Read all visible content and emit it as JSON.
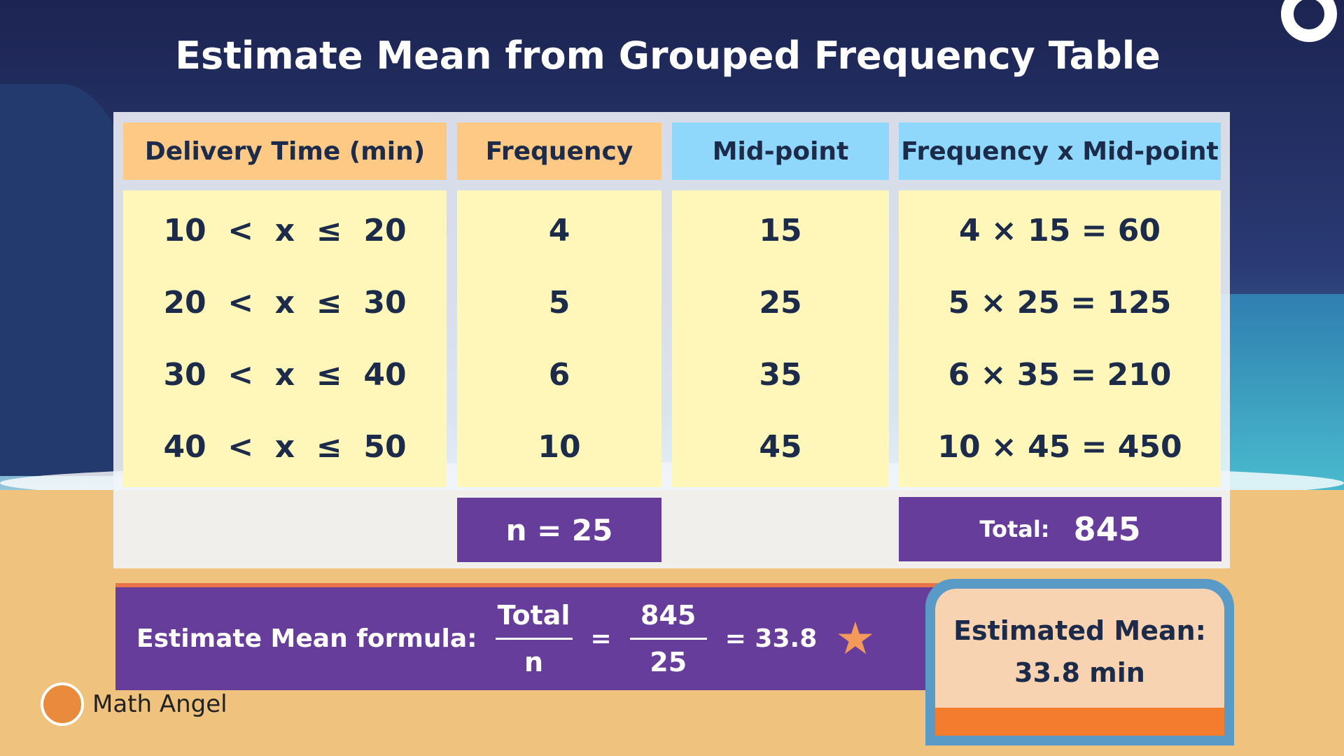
{
  "title": "Estimate Mean from Grouped Frequency Table",
  "table": {
    "headers": [
      "Delivery Time (min)",
      "Frequency",
      "Mid-point",
      "Frequency x Mid-point"
    ],
    "rows": [
      {
        "interval": "10  <  x  ≤  20",
        "frequency": "4",
        "midpoint": "15",
        "product": "4 × 15 = 60"
      },
      {
        "interval": "20  <  x  ≤  30",
        "frequency": "5",
        "midpoint": "25",
        "product": "5 × 25 = 125"
      },
      {
        "interval": "30  <  x  ≤  40",
        "frequency": "6",
        "midpoint": "35",
        "product": "6 × 35 = 210"
      },
      {
        "interval": "40  <  x  ≤  50",
        "frequency": "10",
        "midpoint": "45",
        "product": "10 × 45 = 450"
      }
    ],
    "n_total": "n = 25",
    "total_label": "Total:",
    "total_value": "845"
  },
  "formula": {
    "label": "Estimate Mean formula:",
    "num1": "Total",
    "den1": "n",
    "eq": "=",
    "num2": "845",
    "den2": "25",
    "result": "= 33.8"
  },
  "estimated_mean": {
    "label": "Estimated Mean:",
    "value": "33.8 min"
  },
  "brand": "Math Angel",
  "colors": {
    "header_orange": "#fdc985",
    "header_blue": "#8fd8fb",
    "cell_yellow": "#fff6b9",
    "purple": "#673d9c"
  }
}
